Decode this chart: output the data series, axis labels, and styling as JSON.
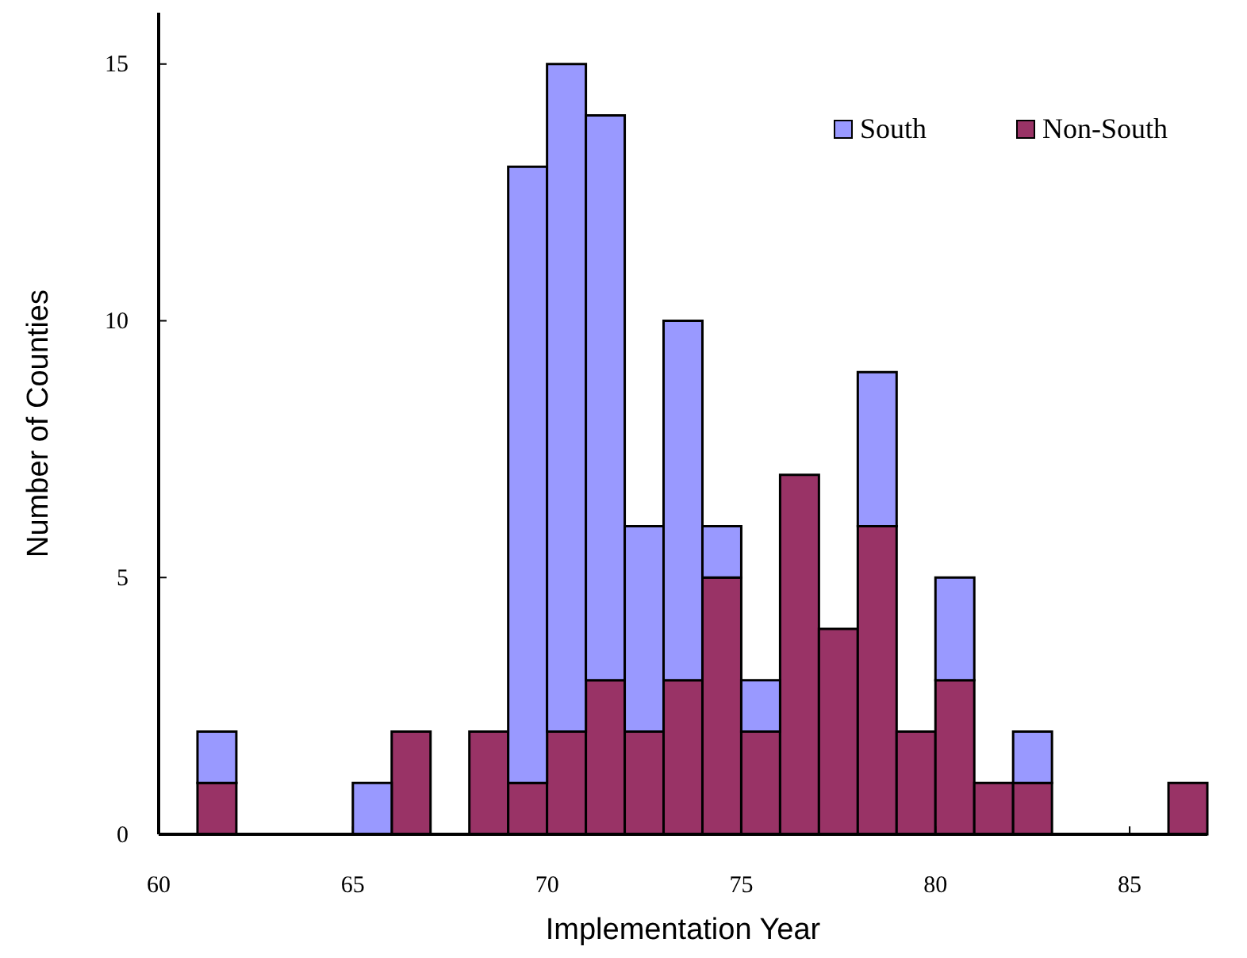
{
  "chart_data": {
    "type": "bar",
    "xlabel": "Implementation Year",
    "ylabel": "Number of Counties",
    "stacked": true,
    "x": [
      61.5,
      62.5,
      63.5,
      64.5,
      65.5,
      66.5,
      67.5,
      68.5,
      69.5,
      70.5,
      71.5,
      72.5,
      73.5,
      74.5,
      75.5,
      76.5,
      77.5,
      78.5,
      79.5,
      80.5,
      81.5,
      82.5,
      83.5,
      84.5,
      85.5,
      86.5
    ],
    "series": [
      {
        "name": "Non-South",
        "color": "#993366",
        "values": [
          1,
          0,
          0,
          0,
          0,
          2,
          0,
          2,
          1,
          2,
          3,
          2,
          3,
          5,
          2,
          7,
          4,
          6,
          2,
          3,
          1,
          1,
          0,
          0,
          0,
          1
        ]
      },
      {
        "name": "South",
        "color": "#9999ff",
        "values": [
          1,
          0,
          0,
          0,
          1,
          0,
          0,
          0,
          12,
          13,
          11,
          4,
          7,
          1,
          1,
          0,
          0,
          3,
          0,
          2,
          0,
          1,
          0,
          0,
          0,
          0
        ]
      }
    ],
    "xlim": [
      60,
      87
    ],
    "xticks": [
      60,
      65,
      70,
      75,
      80,
      85
    ],
    "ylim": [
      0,
      16
    ],
    "yticks": [
      0,
      5,
      10,
      15
    ],
    "legend": "top right",
    "grid": false
  }
}
